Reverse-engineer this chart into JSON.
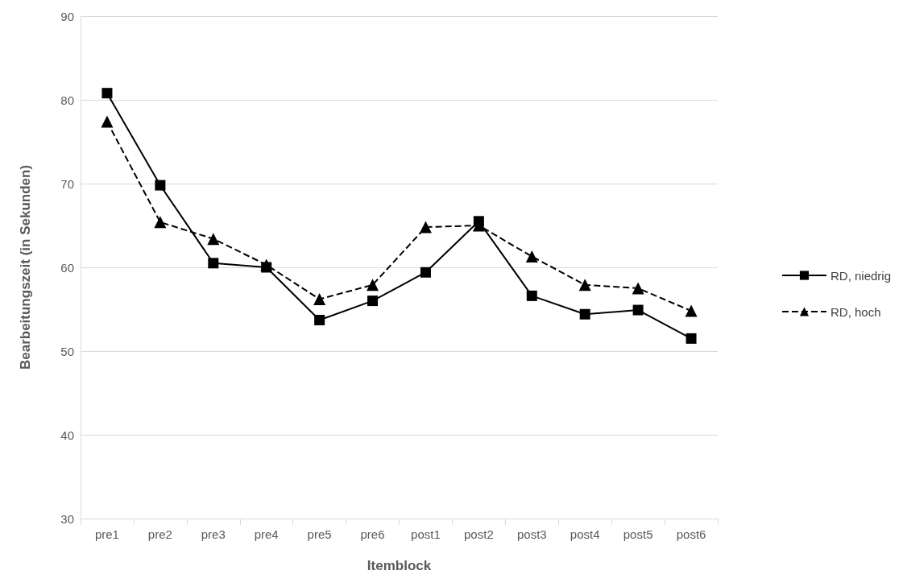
{
  "chart_data": {
    "type": "line",
    "xlabel": "Itemblock",
    "ylabel": "Bearbeitungszeit (in Sekunden)",
    "categories": [
      "pre1",
      "pre2",
      "pre3",
      "pre4",
      "pre5",
      "pre6",
      "post1",
      "post2",
      "post3",
      "post4",
      "post5",
      "post6"
    ],
    "series": [
      {
        "name": "RD, niedrig",
        "color": "#000000",
        "marker": "square",
        "line_style": "solid",
        "values": [
          80.8,
          69.8,
          60.5,
          60.0,
          53.7,
          56.0,
          59.4,
          65.5,
          56.6,
          54.4,
          54.9,
          51.5
        ]
      },
      {
        "name": "RD, hoch",
        "color": "#000000",
        "marker": "triangle",
        "line_style": "dashed",
        "values": [
          77.4,
          65.4,
          63.4,
          60.3,
          56.2,
          57.9,
          64.8,
          65.0,
          61.3,
          57.9,
          57.5,
          54.8
        ]
      }
    ],
    "ylim": [
      30,
      90
    ],
    "yticks": [
      30,
      40,
      50,
      60,
      70,
      80,
      90
    ],
    "grid": "y",
    "legend": "right"
  }
}
